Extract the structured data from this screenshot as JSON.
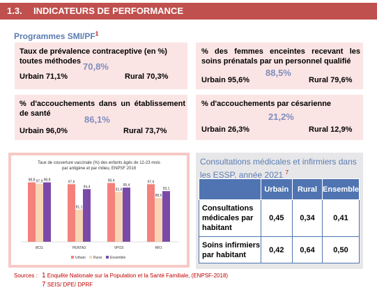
{
  "header": {
    "number": "1.3.",
    "title": "INDICATEURS DE PERFORMANCE"
  },
  "programmes": {
    "title": "Programmes SMI/PF",
    "sup": "1"
  },
  "indicators": [
    {
      "label": "Taux de prévalence contraceptive (en %) toutes méthodes",
      "value": "70,8%",
      "urbain": "Urbain 71,1%",
      "rural": "Rural 70,3%"
    },
    {
      "label": "% des femmes enceintes recevant les soins prénatals par un personnel qualifié",
      "value": "88,5%",
      "urbain": "Urbain 95,6%",
      "rural": "Rural 79,6%"
    },
    {
      "label": "% d'accouchements dans un établissement de santé",
      "value": "86,1%",
      "urbain": "Urbain 96,0%",
      "rural": "Rural 73,7%"
    },
    {
      "label": "% d'accouchements par césarienne",
      "value": "21,2%",
      "urbain": "Urbain 26,3%",
      "rural": "Rural 12,9%"
    }
  ],
  "chart_data": {
    "type": "bar",
    "title": "Taux de couverture vaccinale (%) des enfants âgés de 12-23 mois par antigène et par milieu, ENPSF 2018",
    "categories": [
      "BCG",
      "PENTA3",
      "VPO3",
      "RR1"
    ],
    "series": [
      {
        "name": "Urbain",
        "values": [
          98.8,
          97.6,
          98.4,
          97.6
        ],
        "labels": [
          "98,8",
          "97,6",
          "98,4",
          "97,6"
        ],
        "color": "#f4817c"
      },
      {
        "name": "Rural",
        "values": [
          97.9,
          81.1,
          92.6,
          88.6
        ],
        "labels": [
          "97,9",
          "81,1",
          "92,6",
          "88,6"
        ],
        "color": "#f9d4b4"
      },
      {
        "name": "Ensemble",
        "values": [
          98.8,
          94.4,
          95.4,
          93.1
        ],
        "labels": [
          "98,8",
          "94,4",
          "95,4",
          "93,1"
        ],
        "color": "#7b4aa8"
      }
    ],
    "ylim": [
      60,
      100
    ],
    "legend": "bottom"
  },
  "consult": {
    "title": "Consultations médicales et infirmiers dans les ESSP, année 2021",
    "sup": "7",
    "columns": [
      "Urbain",
      "Rural",
      "Ensemble"
    ],
    "rows": [
      {
        "label": "Consultations médicales par habitant",
        "values": [
          "0,45",
          "0,34",
          "0,41"
        ]
      },
      {
        "label": "Soins infirmiers par habitant",
        "values": [
          "0,42",
          "0,64",
          "0,50"
        ]
      }
    ]
  },
  "sources": {
    "label": "Sources :",
    "items": [
      {
        "num": "1",
        "text": "Enquête Nationale sur la Population et la Santé Familiale, (ENPSF-2018)"
      },
      {
        "num": "7",
        "text": "SEIS/ DPE/ DPRF"
      }
    ]
  }
}
